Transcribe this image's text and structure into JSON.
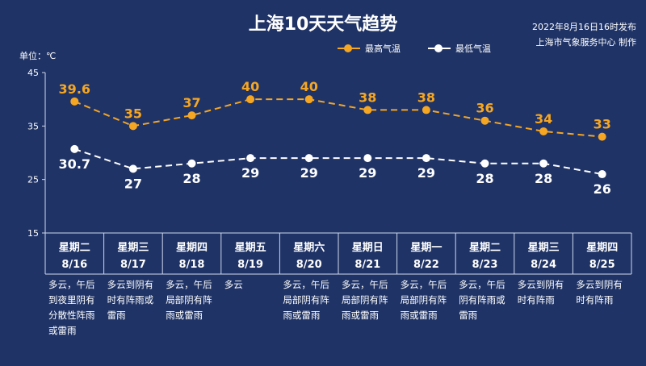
{
  "header": {
    "title": "上海10天天气趋势",
    "publish_time": "2022年8月16日16时发布",
    "publisher": "上海市气象服务中心 制作",
    "unit": "单位：℃"
  },
  "colors": {
    "background": "#1f3366",
    "high": "#f5a623",
    "low": "#ffffff",
    "axis": "#cfd8ec"
  },
  "chart_data": {
    "type": "line",
    "title": "上海10天天气趋势",
    "ylabel": "单位：℃",
    "ylim": [
      15,
      45
    ],
    "yticks": [
      15,
      25,
      35,
      45
    ],
    "grid": false,
    "legend": "top-center",
    "categories": [
      {
        "weekday": "星期二",
        "date": "8/16"
      },
      {
        "weekday": "星期三",
        "date": "8/17"
      },
      {
        "weekday": "星期四",
        "date": "8/18"
      },
      {
        "weekday": "星期五",
        "date": "8/19"
      },
      {
        "weekday": "星期六",
        "date": "8/20"
      },
      {
        "weekday": "星期日",
        "date": "8/21"
      },
      {
        "weekday": "星期一",
        "date": "8/22"
      },
      {
        "weekday": "星期二",
        "date": "8/23"
      },
      {
        "weekday": "星期三",
        "date": "8/24"
      },
      {
        "weekday": "星期四",
        "date": "8/25"
      }
    ],
    "series": [
      {
        "name": "最高气温",
        "values": [
          39.6,
          35,
          37,
          40,
          40,
          38,
          38,
          36,
          34,
          33
        ],
        "labels": [
          "39.6",
          "35",
          "37",
          "40",
          "40",
          "38",
          "38",
          "36",
          "34",
          "33"
        ]
      },
      {
        "name": "最低气温",
        "values": [
          30.7,
          27,
          28,
          29,
          29,
          29,
          29,
          28,
          28,
          26
        ],
        "labels": [
          "30.7",
          "27",
          "28",
          "29",
          "29",
          "29",
          "29",
          "28",
          "28",
          "26"
        ]
      }
    ],
    "weather": [
      "多云，午后到夜里阴有分散性阵雨或雷雨",
      "多云到阴有时有阵雨或雷雨",
      "多云，午后局部阴有阵雨或雷雨",
      "多云",
      "多云，午后局部阴有阵雨或雷雨",
      "多云，午后局部阴有阵雨或雷雨",
      "多云，午后局部阴有阵雨或雷雨",
      "多云，午后阴有阵雨或雷雨",
      "多云到阴有时有阵雨",
      "多云到阴有时有阵雨"
    ]
  }
}
